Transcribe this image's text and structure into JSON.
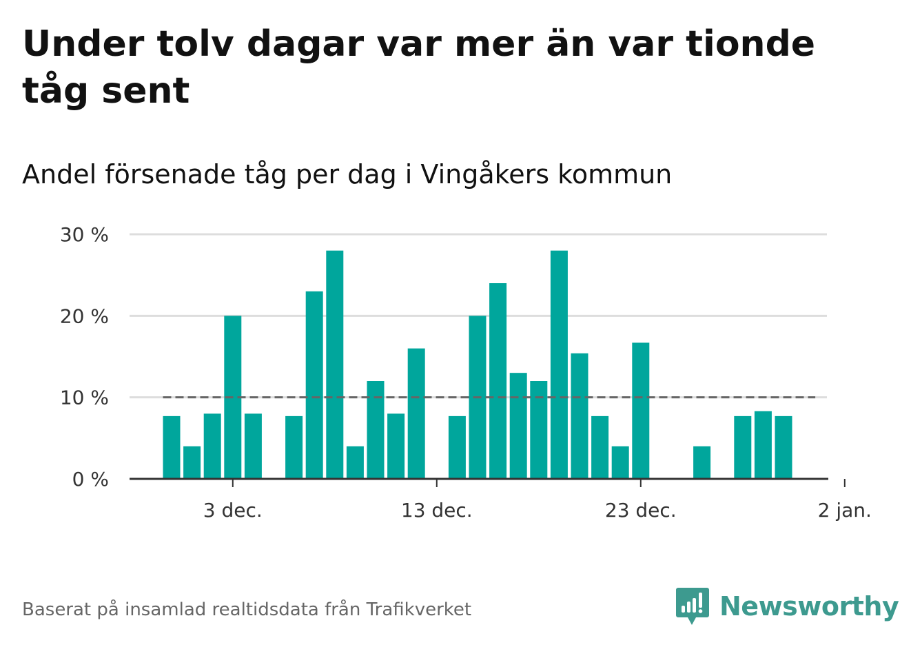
{
  "title": "Under tolv dagar var mer än var tionde tåg sent",
  "subtitle": "Andel försenade tåg per dag i Vingåkers kommun",
  "footer": "Baserat på insamlad realtidsdata från Trafikverket",
  "logo_text": "Newsworthy",
  "colors": {
    "bar": "#00a69c",
    "grid": "#dddddd",
    "axis": "#333333",
    "reference": "#666666",
    "logo": "#3d9a8f"
  },
  "chart_data": {
    "type": "bar",
    "x": [
      "2023-11-30",
      "2023-12-01",
      "2023-12-02",
      "2023-12-03",
      "2023-12-04",
      "2023-12-05",
      "2023-12-06",
      "2023-12-07",
      "2023-12-08",
      "2023-12-09",
      "2023-12-10",
      "2023-12-11",
      "2023-12-12",
      "2023-12-13",
      "2023-12-14",
      "2023-12-15",
      "2023-12-16",
      "2023-12-17",
      "2023-12-18",
      "2023-12-19",
      "2023-12-20",
      "2023-12-21",
      "2023-12-22",
      "2023-12-23",
      "2023-12-24",
      "2023-12-25",
      "2023-12-26",
      "2023-12-27",
      "2023-12-28",
      "2023-12-29",
      "2023-12-30",
      "2023-12-31",
      "2024-01-01"
    ],
    "values": [
      7.7,
      4.0,
      8.0,
      20.0,
      8.0,
      null,
      7.7,
      23.0,
      28.0,
      4.0,
      12.0,
      8.0,
      16.0,
      null,
      7.7,
      20.0,
      24.0,
      13.0,
      12.0,
      28.0,
      15.4,
      7.7,
      4.0,
      16.7,
      null,
      null,
      4.0,
      null,
      7.7,
      8.3,
      7.7,
      null,
      null
    ],
    "reference_line": {
      "value": 10
    },
    "ylim": [
      0,
      30
    ],
    "y_ticks": [
      {
        "value": 0,
        "label": "0 %"
      },
      {
        "value": 10,
        "label": "10 %"
      },
      {
        "value": 20,
        "label": "20 %"
      },
      {
        "value": 30,
        "label": "30 %"
      }
    ],
    "x_ticks": [
      {
        "x": "2023-12-03",
        "label": "3 dec."
      },
      {
        "x": "2023-12-13",
        "label": "13 dec."
      },
      {
        "x": "2023-12-23",
        "label": "23 dec."
      },
      {
        "x": "2024-01-02",
        "label": "2 jan."
      }
    ],
    "grid": true,
    "legend": "none"
  }
}
